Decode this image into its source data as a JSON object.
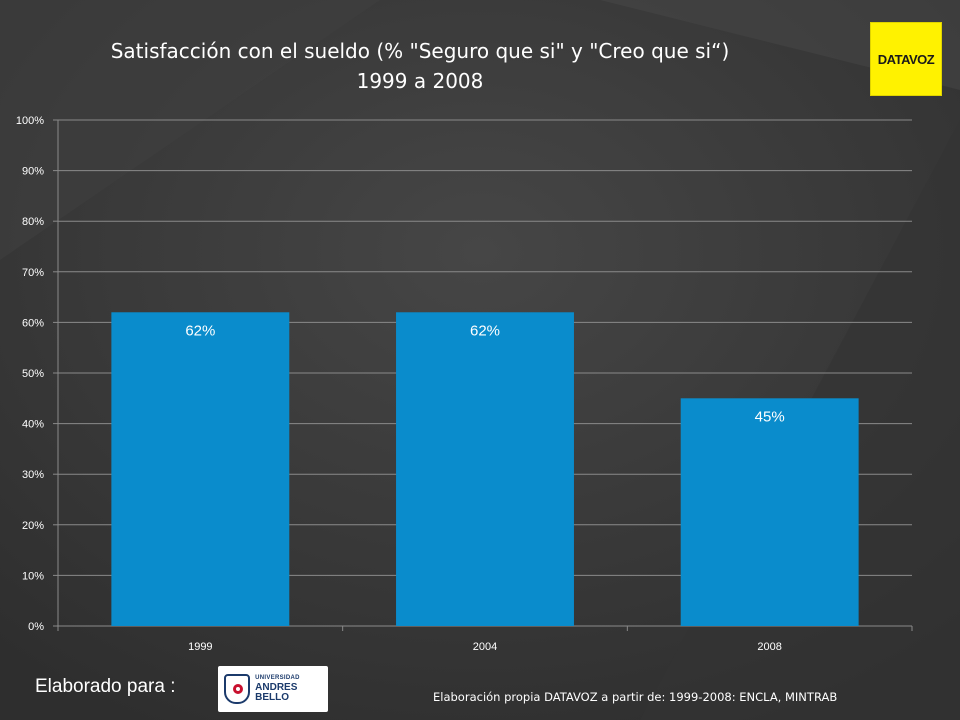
{
  "header": {
    "title_line1": "Satisfacción con el sueldo (% \"Seguro que si\" y \"Creo que si“)",
    "title_line2": "1999 a 2008",
    "logo_text": "DATAVOZ"
  },
  "footer": {
    "elaborated_for": "Elaborado para :",
    "partner_logo_small": "UNIVERSIDAD",
    "partner_logo_big": "ANDRES BELLO",
    "source": "Elaboración propia DATAVOZ a partir de: 1999-2008: ENCLA, MINTRAB"
  },
  "colors": {
    "bar": "#0a8ccc",
    "background": "#3a3a3a",
    "logo_bg": "#fff200"
  },
  "chart_data": {
    "type": "bar",
    "title": "Satisfacción con el sueldo (% \"Seguro que si\" y \"Creo que si“) 1999 a 2008",
    "categories": [
      "1999",
      "2004",
      "2008"
    ],
    "values": [
      62,
      62,
      45
    ],
    "data_labels": [
      "62%",
      "62%",
      "45%"
    ],
    "ylim": [
      0,
      100
    ],
    "yticks": [
      "0%",
      "10%",
      "20%",
      "30%",
      "40%",
      "50%",
      "60%",
      "70%",
      "80%",
      "90%",
      "100%"
    ],
    "xlabel": "",
    "ylabel": "",
    "grid": true,
    "legend": "none"
  }
}
